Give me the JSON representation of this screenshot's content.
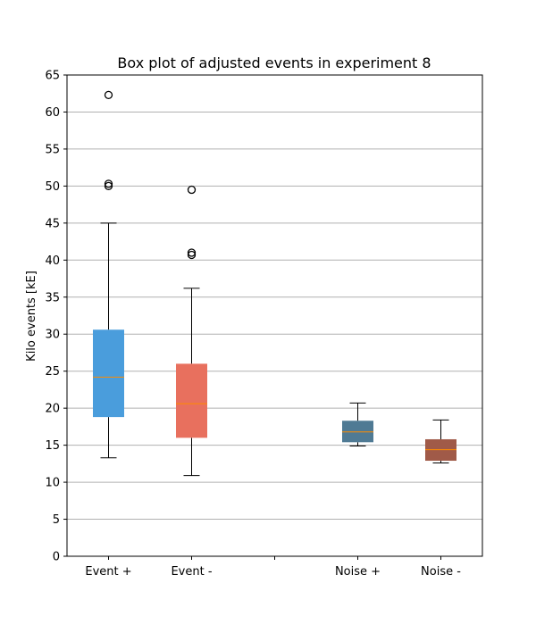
{
  "chart_data": {
    "type": "box",
    "title": "Box plot of adjusted events in experiment 8",
    "xlabel": "",
    "ylabel": "Kilo events [kE]",
    "ylim": [
      0,
      65
    ],
    "yticks": [
      0,
      5,
      10,
      15,
      20,
      25,
      30,
      35,
      40,
      45,
      50,
      55,
      60,
      65
    ],
    "grid": "horizontal",
    "categories": [
      "Event +",
      "Event -",
      "",
      "Noise +",
      "Noise -"
    ],
    "boxes": [
      {
        "category": "Event +",
        "whisker_low": 13.3,
        "q1": 18.8,
        "median": 24.2,
        "q3": 30.6,
        "whisker_high": 45.0,
        "outliers": [
          62.3,
          50.3,
          50.0
        ],
        "color": "#4a9ddc"
      },
      {
        "category": "Event -",
        "whisker_low": 10.9,
        "q1": 16.0,
        "median": 20.6,
        "q3": 26.0,
        "whisker_high": 36.2,
        "outliers": [
          49.5,
          41.0,
          40.7
        ],
        "color": "#e8705e"
      },
      {
        "category": "Noise +",
        "whisker_low": 14.9,
        "q1": 15.4,
        "median": 16.8,
        "q3": 18.3,
        "whisker_high": 20.7,
        "outliers": [],
        "color": "#4f7a94"
      },
      {
        "category": "Noise -",
        "whisker_low": 12.6,
        "q1": 12.9,
        "median": 14.4,
        "q3": 15.8,
        "whisker_high": 18.4,
        "outliers": [],
        "color": "#a05a48"
      }
    ],
    "median_color": "#ff8c00",
    "grid_color": "#b0b0b0"
  }
}
